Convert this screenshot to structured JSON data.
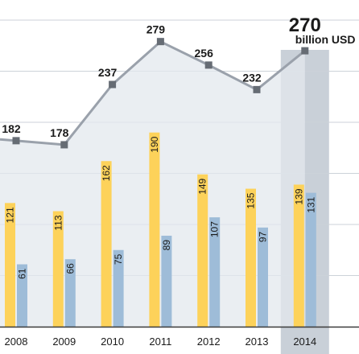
{
  "chart_data": {
    "type": "bar",
    "categories": [
      "2008",
      "2009",
      "2010",
      "2011",
      "2012",
      "2013",
      "2014"
    ],
    "highlight_category": "2014",
    "series": [
      {
        "kind": "line",
        "values": [
          182,
          178,
          237,
          279,
          256,
          232,
          270
        ]
      },
      {
        "kind": "bar",
        "values": [
          121,
          113,
          162,
          190,
          149,
          135,
          139
        ]
      },
      {
        "kind": "bar",
        "values": [
          61,
          66,
          75,
          89,
          107,
          97,
          131
        ]
      }
    ],
    "unit_label": "billion USD",
    "ylim": [
      0,
      300
    ],
    "grid": true,
    "colors": {
      "bar_a": "#fdd25a",
      "bar_b": "#9ebcd8",
      "line": "#9aa1ab",
      "area": "#e3e8ee",
      "marker": "#666c74",
      "highlight": "#c9d0d8",
      "grid": "#ccd2d9",
      "axis": "#3a3a3a"
    }
  }
}
